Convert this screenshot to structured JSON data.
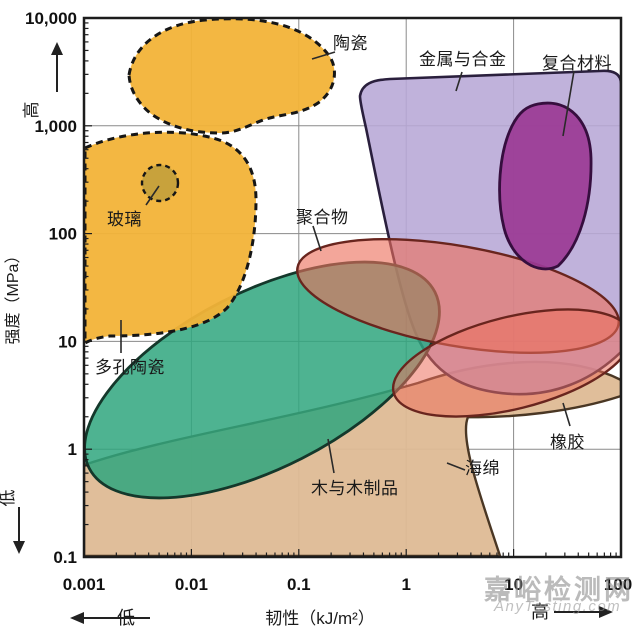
{
  "watermark": {
    "line1": "嘉峪检测网",
    "line2": "AnyTesting.com"
  },
  "axes": {
    "x": {
      "title": "韧性（kJ/m²）",
      "low_label": "低",
      "high_label": "高",
      "tick_labels": [
        "0.001",
        "0.01",
        "0.1",
        "1",
        "10",
        "100"
      ],
      "tick_values": [
        0.001,
        0.01,
        0.1,
        1,
        10,
        100
      ]
    },
    "y": {
      "title": "强度（MPa）",
      "low_label": "低",
      "high_label": "高",
      "tick_labels": [
        "10,000",
        "1,000",
        "100",
        "10",
        "1",
        "0.1"
      ],
      "tick_values": [
        10000,
        1000,
        100,
        10,
        1,
        0.1
      ]
    }
  },
  "chart_data": {
    "type": "area",
    "title": "",
    "xlabel": "韧性（kJ/m²）",
    "ylabel": "强度（MPa）",
    "xscale": "log",
    "yscale": "log",
    "xlim": [
      0.001,
      100
    ],
    "ylim": [
      0.1,
      10000
    ],
    "grid": true,
    "legend_position": "none",
    "border_color": "#1c1c1c",
    "grid_color": "#8a8a8a",
    "regions": [
      {
        "id": "ceramics",
        "label": "陶瓷",
        "fill": "#f2b338",
        "outline_style": "dashed",
        "x_range": [
          0.0026,
          0.21
        ],
        "y_range": [
          10,
          10000
        ],
        "note": "two dashed lobes; upper lobe 1100-10000 MPa, lower lobe 10-1100 MPa at x 0.001-0.04"
      },
      {
        "id": "glass",
        "label": "玻璃",
        "fill": "#c8a23c",
        "outline_style": "dashed",
        "x_range": [
          0.0033,
          0.0069
        ],
        "y_range": [
          230,
          470
        ]
      },
      {
        "id": "porous_ceramics",
        "label": "多孔陶瓷",
        "fill": "#f2b338",
        "outline_style": "dashed",
        "x_range": [
          0.001,
          0.04
        ],
        "y_range": [
          10,
          1100
        ]
      },
      {
        "id": "metals",
        "label": "金属与合金",
        "fill": "#b7a7d6",
        "outline_style": "solid",
        "x_range": [
          0.35,
          100
        ],
        "y_range": [
          3.2,
          3200
        ]
      },
      {
        "id": "composites",
        "label": "复合材料",
        "fill": "#9b3a95",
        "outline_style": "solid",
        "x_range": [
          7,
          60
        ],
        "y_range": [
          48,
          1700
        ]
      },
      {
        "id": "polymers",
        "label": "聚合物",
        "fill": "#ec6f5c",
        "outline_style": "solid",
        "x_range": [
          0.097,
          96
        ],
        "y_range": [
          8,
          75
        ]
      },
      {
        "id": "wood",
        "label": "木与木制品",
        "fill": "#2fa67e",
        "outline_style": "solid",
        "x_range": [
          0.0011,
          1.9
        ],
        "y_range": [
          0.38,
          50
        ]
      },
      {
        "id": "rubber",
        "label": "橡胶",
        "fill": "#ec6f5c",
        "outline_style": "solid",
        "x_range": [
          0.76,
          100
        ],
        "y_range": [
          2.5,
          20
        ]
      },
      {
        "id": "sponge",
        "label": "海绵",
        "fill": "#debb95",
        "outline_style": "solid",
        "x_range": [
          0.001,
          100
        ],
        "y_range": [
          0.1,
          6.5
        ]
      }
    ]
  }
}
